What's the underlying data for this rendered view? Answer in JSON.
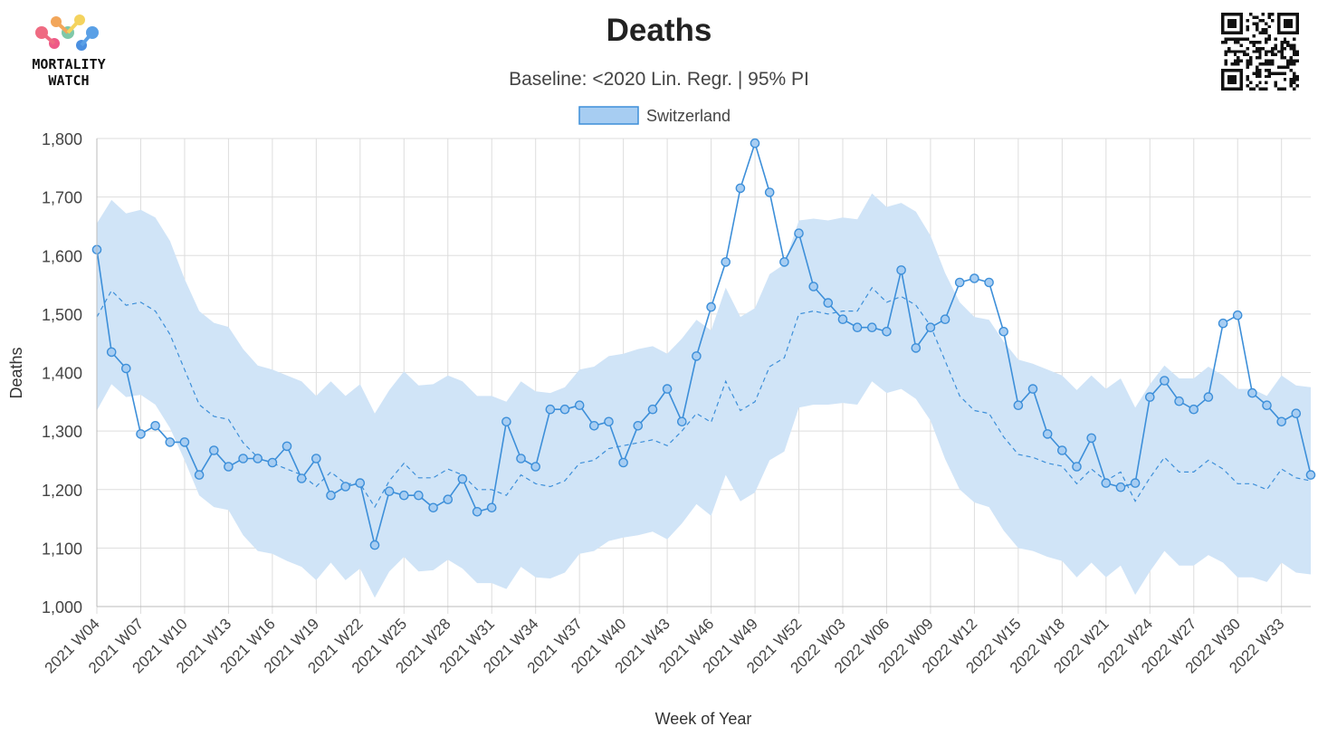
{
  "logo": {
    "line1": "MORTALITY",
    "line2": "WATCH"
  },
  "chart_data": {
    "type": "line",
    "title": "Deaths",
    "subtitle": "Baseline: <2020 Lin. Regr. | 95% PI",
    "xlabel": "Week of Year",
    "ylabel": "Deaths",
    "ylim": [
      1000,
      1800
    ],
    "yticks": [
      1000,
      1100,
      1200,
      1300,
      1400,
      1500,
      1600,
      1700,
      1800
    ],
    "ytick_labels": [
      "1,000",
      "1,100",
      "1,200",
      "1,300",
      "1,400",
      "1,500",
      "1,600",
      "1,700",
      "1,800"
    ],
    "grid": true,
    "legend_position": "top-center",
    "x": [
      "2021 W04",
      "2021 W05",
      "2021 W06",
      "2021 W07",
      "2021 W08",
      "2021 W09",
      "2021 W10",
      "2021 W11",
      "2021 W12",
      "2021 W13",
      "2021 W14",
      "2021 W15",
      "2021 W16",
      "2021 W17",
      "2021 W18",
      "2021 W19",
      "2021 W20",
      "2021 W21",
      "2021 W22",
      "2021 W23",
      "2021 W24",
      "2021 W25",
      "2021 W26",
      "2021 W27",
      "2021 W28",
      "2021 W29",
      "2021 W30",
      "2021 W31",
      "2021 W32",
      "2021 W33",
      "2021 W34",
      "2021 W35",
      "2021 W36",
      "2021 W37",
      "2021 W38",
      "2021 W39",
      "2021 W40",
      "2021 W41",
      "2021 W42",
      "2021 W43",
      "2021 W44",
      "2021 W45",
      "2021 W46",
      "2021 W47",
      "2021 W48",
      "2021 W49",
      "2021 W50",
      "2021 W51",
      "2021 W52",
      "2022 W01",
      "2022 W02",
      "2022 W03",
      "2022 W04",
      "2022 W05",
      "2022 W06",
      "2022 W07",
      "2022 W08",
      "2022 W09",
      "2022 W10",
      "2022 W11",
      "2022 W12",
      "2022 W13",
      "2022 W14",
      "2022 W15",
      "2022 W16",
      "2022 W17",
      "2022 W18",
      "2022 W19",
      "2022 W20",
      "2022 W21",
      "2022 W22",
      "2022 W23",
      "2022 W24",
      "2022 W25",
      "2022 W26",
      "2022 W27",
      "2022 W28",
      "2022 W29",
      "2022 W30",
      "2022 W31",
      "2022 W32",
      "2022 W33",
      "2022 W34",
      "2022 W35"
    ],
    "xtick_labels": [
      "2021 W04",
      "2021 W07",
      "2021 W10",
      "2021 W13",
      "2021 W16",
      "2021 W19",
      "2021 W22",
      "2021 W25",
      "2021 W28",
      "2021 W31",
      "2021 W34",
      "2021 W37",
      "2021 W40",
      "2021 W43",
      "2021 W46",
      "2021 W49",
      "2021 W52",
      "2022 W03",
      "2022 W06",
      "2022 W09",
      "2022 W12",
      "2022 W15",
      "2022 W18",
      "2022 W21",
      "2022 W24",
      "2022 W27",
      "2022 W30",
      "2022 W33"
    ],
    "series": [
      {
        "name": "Switzerland",
        "color": "#3d8fd9",
        "fill": "#a7cdf2",
        "values": [
          1610,
          1435,
          1407,
          1295,
          1309,
          1281,
          1281,
          1225,
          1267,
          1239,
          1253,
          1253,
          1246,
          1274,
          1219,
          1253,
          1190,
          1205,
          1211,
          1105,
          1197,
          1190,
          1190,
          1169,
          1183,
          1218,
          1162,
          1169,
          1316,
          1253,
          1239,
          1337,
          1337,
          1344,
          1309,
          1316,
          1246,
          1309,
          1337,
          1372,
          1316,
          1428,
          1512,
          1589,
          1715,
          1792,
          1708,
          1589,
          1638,
          1547,
          1519,
          1491,
          1477,
          1477,
          1470,
          1575,
          1442,
          1477,
          1491,
          1554,
          1561,
          1554,
          1470,
          1344,
          1372,
          1295,
          1267,
          1239,
          1288,
          1211,
          1204,
          1211,
          1358,
          1386,
          1351,
          1337,
          1358,
          1484,
          1498,
          1365,
          1344,
          1316,
          1330,
          1225
        ]
      }
    ],
    "baseline": {
      "color": "#3d8fd9",
      "values": [
        1495,
        1540,
        1515,
        1520,
        1505,
        1465,
        1405,
        1345,
        1325,
        1320,
        1280,
        1255,
        1245,
        1235,
        1225,
        1205,
        1230,
        1210,
        1210,
        1170,
        1215,
        1245,
        1220,
        1220,
        1235,
        1225,
        1200,
        1200,
        1190,
        1225,
        1210,
        1205,
        1215,
        1245,
        1250,
        1270,
        1275,
        1280,
        1285,
        1275,
        1300,
        1330,
        1315,
        1385,
        1335,
        1350,
        1410,
        1425,
        1500,
        1505,
        1500,
        1505,
        1505,
        1545,
        1520,
        1530,
        1515,
        1480,
        1420,
        1360,
        1335,
        1330,
        1290,
        1260,
        1255,
        1245,
        1240,
        1210,
        1235,
        1215,
        1230,
        1180,
        1220,
        1255,
        1230,
        1230,
        1250,
        1235,
        1210,
        1210,
        1200,
        1235,
        1220,
        1215
      ]
    },
    "prediction_interval": {
      "color": "#d0e4f7",
      "upper": [
        1655,
        1695,
        1672,
        1678,
        1665,
        1625,
        1560,
        1505,
        1485,
        1478,
        1440,
        1412,
        1405,
        1395,
        1385,
        1360,
        1385,
        1360,
        1380,
        1330,
        1370,
        1402,
        1378,
        1380,
        1395,
        1385,
        1360,
        1360,
        1350,
        1385,
        1368,
        1365,
        1375,
        1405,
        1410,
        1428,
        1432,
        1440,
        1445,
        1432,
        1458,
        1490,
        1472,
        1545,
        1495,
        1510,
        1568,
        1585,
        1660,
        1663,
        1660,
        1665,
        1662,
        1706,
        1683,
        1690,
        1675,
        1634,
        1570,
        1520,
        1495,
        1490,
        1453,
        1422,
        1415,
        1405,
        1395,
        1370,
        1395,
        1372,
        1390,
        1340,
        1380,
        1412,
        1390,
        1390,
        1410,
        1395,
        1372,
        1372,
        1360,
        1395,
        1378,
        1375
      ],
      "lower": [
        1335,
        1380,
        1358,
        1362,
        1345,
        1305,
        1250,
        1190,
        1170,
        1165,
        1122,
        1095,
        1090,
        1078,
        1068,
        1045,
        1075,
        1045,
        1065,
        1015,
        1060,
        1085,
        1060,
        1062,
        1080,
        1065,
        1040,
        1040,
        1030,
        1068,
        1050,
        1048,
        1058,
        1090,
        1095,
        1112,
        1118,
        1122,
        1128,
        1115,
        1142,
        1175,
        1155,
        1225,
        1180,
        1195,
        1250,
        1265,
        1340,
        1345,
        1345,
        1348,
        1345,
        1385,
        1365,
        1372,
        1355,
        1318,
        1252,
        1200,
        1178,
        1170,
        1130,
        1100,
        1095,
        1085,
        1078,
        1050,
        1075,
        1050,
        1070,
        1020,
        1060,
        1095,
        1070,
        1070,
        1088,
        1075,
        1050,
        1050,
        1042,
        1075,
        1058,
        1055
      ]
    }
  }
}
